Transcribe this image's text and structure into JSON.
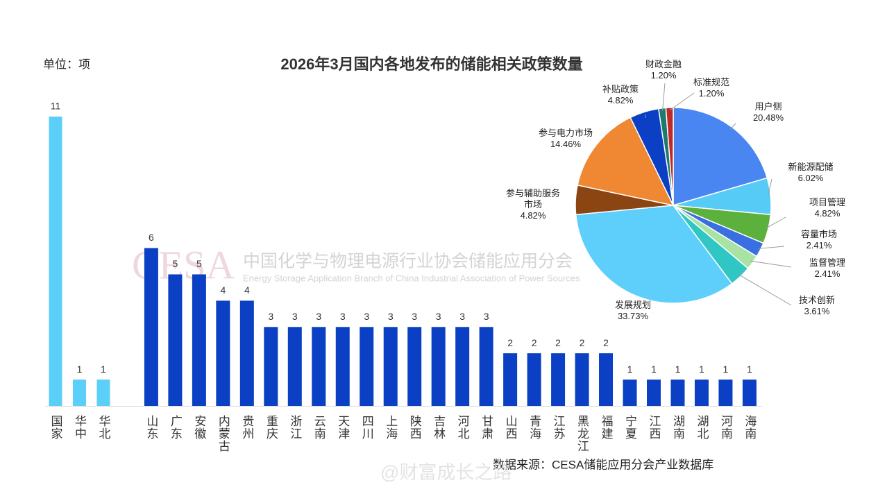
{
  "chart_data": [
    {
      "type": "bar",
      "title": "2026年3月国内各地发布的储能相关政策数量",
      "unit": "单位：项",
      "categories": [
        "国家",
        "华中",
        "华北",
        null,
        "山东",
        "广东",
        "安徽",
        "内蒙古",
        "贵州",
        "重庆",
        "浙江",
        "云南",
        "天津",
        "四川",
        "上海",
        "陕西",
        "吉林",
        "河北",
        "甘肃",
        "山西",
        "青海",
        "江苏",
        "黑龙江",
        "福建",
        "宁夏",
        "江西",
        "湖南",
        "湖北",
        "河南",
        "海南"
      ],
      "values": [
        11,
        1,
        1,
        null,
        6,
        5,
        5,
        4,
        4,
        3,
        3,
        3,
        3,
        3,
        3,
        3,
        3,
        3,
        3,
        2,
        2,
        2,
        2,
        2,
        1,
        1,
        1,
        1,
        1,
        1
      ],
      "colors": [
        "#5ccff8",
        "#5ccff8",
        "#5ccff8",
        null,
        "#0b40c4",
        "#0b40c4",
        "#0b40c4",
        "#0b40c4",
        "#0b40c4",
        "#0b40c4",
        "#0b40c4",
        "#0b40c4",
        "#0b40c4",
        "#0b40c4",
        "#0b40c4",
        "#0b40c4",
        "#0b40c4",
        "#0b40c4",
        "#0b40c4",
        "#0b40c4",
        "#0b40c4",
        "#0b40c4",
        "#0b40c4",
        "#0b40c4",
        "#0b40c4",
        "#0b40c4",
        "#0b40c4",
        "#0b40c4",
        "#0b40c4",
        "#0b40c4"
      ],
      "ylim": [
        0,
        11
      ],
      "source": "数据来源：CESA储能应用分会产业数据库"
    },
    {
      "type": "pie",
      "categories": [
        "用户侧",
        "新能源配储",
        "项目管理",
        "容量市场",
        "监督管理",
        "技术创新",
        "发展规划",
        "参与辅助服务\n市场",
        "参与电力市场",
        "补贴政策",
        "财政金融",
        "标准规范"
      ],
      "values": [
        20.48,
        6.02,
        4.82,
        2.41,
        2.41,
        3.61,
        33.73,
        4.82,
        14.46,
        4.82,
        1.2,
        1.2
      ],
      "value_labels": [
        "20.48%",
        "6.02%",
        "4.82%",
        "2.41%",
        "2.41%",
        "3.61%",
        "33.73%",
        "4.82%",
        "14.46%",
        "4.82%",
        "1.20%",
        "1.20%"
      ],
      "colors": [
        "#4a86f2",
        "#55cbf6",
        "#5cb03c",
        "#3a6fe2",
        "#a9e3a4",
        "#30c6c4",
        "#5ecffa",
        "#8b4513",
        "#ef8733",
        "#0b40c4",
        "#1e7a6c",
        "#c0282a"
      ]
    }
  ],
  "watermark": {
    "logo": "CESA",
    "name": "中国化学与物理电源行业协会储能应用分会",
    "english": "Energy Storage Application Branch of China Industrial Association of Power Sources",
    "weibo": "@财富成长之路"
  }
}
